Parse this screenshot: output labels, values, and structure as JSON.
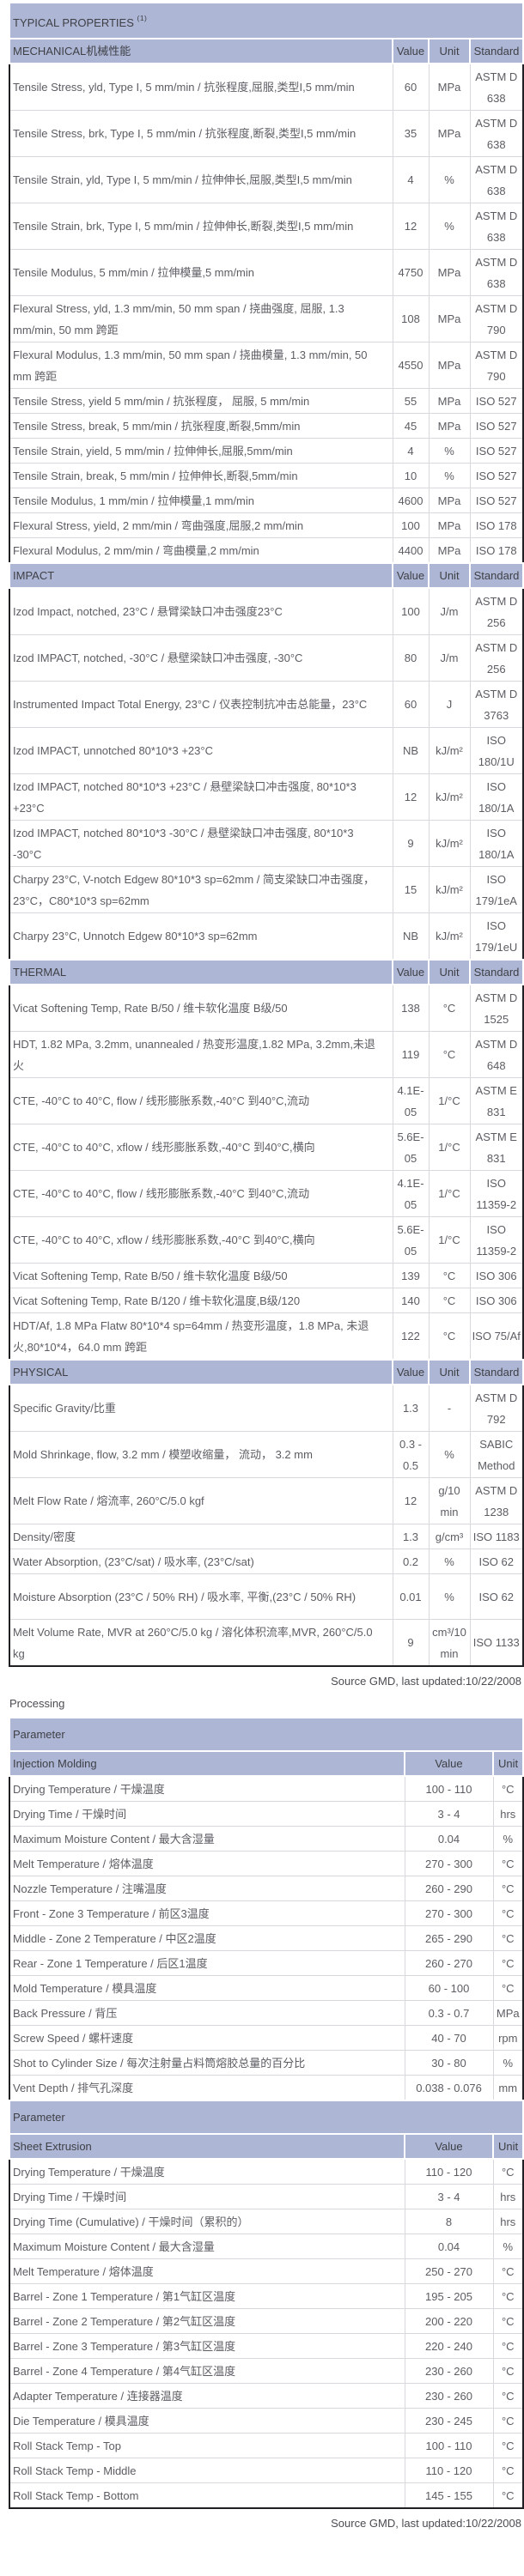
{
  "colors": {
    "header_bg": "#adb6d5",
    "header_text": "#3f4046",
    "body_text": "#5c5d63",
    "border_light": "#d8d9dd",
    "border_dark": "#202024"
  },
  "notes": {
    "source_top": "Source GMD, last updated:10/22/2008",
    "source_bottom": "Source GMD, last updated:10/22/2008"
  },
  "typical_properties": {
    "title": "TYPICAL PROPERTIES",
    "title_sup": "(1)",
    "columns": [
      "Value",
      "Unit",
      "Standard"
    ],
    "sections": [
      {
        "label": "MECHANICAL机械性能",
        "rows": [
          {
            "name": "Tensile Stress, yld, Type I, 5 mm/min / 抗张程度,屈服,类型I,5 mm/min",
            "value": "60",
            "unit": "MPa",
            "standard": "ASTM D 638",
            "tall": true
          },
          {
            "name": "Tensile Stress, brk, Type I, 5 mm/min / 抗张程度,断裂,类型I,5 mm/min",
            "value": "35",
            "unit": "MPa",
            "standard": "ASTM D 638",
            "tall": true
          },
          {
            "name": "Tensile Strain, yld, Type I, 5 mm/min / 拉伸伸长,屈服,类型I,5 mm/min",
            "value": "4",
            "unit": "%",
            "standard": "ASTM D 638",
            "tall": true
          },
          {
            "name": "Tensile Strain, brk, Type I, 5 mm/min / 拉伸伸长,断裂,类型I,5 mm/min",
            "value": "12",
            "unit": "%",
            "standard": "ASTM D 638",
            "tall": true
          },
          {
            "name": "Tensile Modulus, 5 mm/min / 拉伸模量,5 mm/min",
            "value": "4750",
            "unit": "MPa",
            "standard": "ASTM D 638",
            "tall": true
          },
          {
            "name": "Flexural Stress, yld, 1.3 mm/min, 50 mm span / 挠曲强度, 屈服, 1.3 mm/min, 50 mm 跨距",
            "value": "108",
            "unit": "MPa",
            "standard": "ASTM D 790",
            "tall": true
          },
          {
            "name": "Flexural Modulus, 1.3 mm/min, 50 mm span / 挠曲模量, 1.3 mm/min, 50 mm 跨距",
            "value": "4550",
            "unit": "MPa",
            "standard": "ASTM D 790",
            "tall": true
          },
          {
            "name": "Tensile Stress, yield 5 mm/min / 抗张程度， 屈服, 5 mm/min",
            "value": "55",
            "unit": "MPa",
            "standard": "ISO 527"
          },
          {
            "name": "Tensile Stress, break, 5 mm/min / 抗张程度,断裂,5mm/min",
            "value": "45",
            "unit": "MPa",
            "standard": "ISO 527"
          },
          {
            "name": "Tensile Strain, yield, 5 mm/min / 拉伸伸长,屈服,5mm/min",
            "value": "4",
            "unit": "%",
            "standard": "ISO 527"
          },
          {
            "name": "Tensile Strain, break, 5 mm/min / 拉伸伸长,断裂,5mm/min",
            "value": "10",
            "unit": "%",
            "standard": "ISO 527"
          },
          {
            "name": "Tensile Modulus, 1 mm/min / 拉伸模量,1 mm/min",
            "value": "4600",
            "unit": "MPa",
            "standard": "ISO 527"
          },
          {
            "name": "Flexural Stress, yield, 2 mm/min / 弯曲强度,屈服,2 mm/min",
            "value": "100",
            "unit": "MPa",
            "standard": "ISO 178"
          },
          {
            "name": "Flexural Modulus, 2 mm/min / 弯曲模量,2 mm/min",
            "value": "4400",
            "unit": "MPa",
            "standard": "ISO 178"
          }
        ]
      },
      {
        "label": "IMPACT",
        "rows": [
          {
            "name": "Izod Impact, notched, 23°C / 悬臂梁缺口冲击强度23°C",
            "value": "100",
            "unit": "J/m",
            "standard": "ASTM D 256",
            "tall": true
          },
          {
            "name": "Izod IMPACT, notched, -30°C / 悬壁梁缺口冲击强度, -30°C",
            "value": "80",
            "unit": "J/m",
            "standard": "ASTM D 256",
            "tall": true
          },
          {
            "name": "Instrumented Impact Total Energy, 23°C / 仪表控制抗冲击总能量，23°C",
            "value": "60",
            "unit": "J",
            "standard": "ASTM D 3763",
            "tall": true
          },
          {
            "name": "Izod IMPACT, unnotched 80*10*3 +23°C",
            "value": "NB",
            "unit": "kJ/m²",
            "standard": "ISO 180/1U",
            "tall": true
          },
          {
            "name": "Izod IMPACT, notched 80*10*3 +23°C / 悬壁梁缺口冲击强度, 80*10*3 +23°C",
            "value": "12",
            "unit": "kJ/m²",
            "standard": "ISO 180/1A",
            "tall": true
          },
          {
            "name": "Izod IMPACT, notched 80*10*3 -30°C / 悬壁梁缺口冲击强度, 80*10*3 -30°C",
            "value": "9",
            "unit": "kJ/m²",
            "standard": "ISO 180/1A",
            "tall": true
          },
          {
            "name": "Charpy 23°C, V-notch Edgew 80*10*3 sp=62mm / 简支梁缺口冲击强度，23°C，C80*10*3 sp=62mm",
            "value": "15",
            "unit": "kJ/m²",
            "standard": "ISO 179/1eA",
            "tall": true
          },
          {
            "name": "Charpy 23°C, Unnotch Edgew 80*10*3 sp=62mm",
            "value": "NB",
            "unit": "kJ/m²",
            "standard": "ISO 179/1eU",
            "tall": true
          }
        ]
      },
      {
        "label": "THERMAL",
        "rows": [
          {
            "name": "Vicat Softening Temp, Rate B/50 / 维卡软化温度 B级/50",
            "value": "138",
            "unit": "°C",
            "standard": "ASTM D 1525",
            "tall": true
          },
          {
            "name": "HDT, 1.82 MPa, 3.2mm, unannealed / 热变形温度,1.82 MPa, 3.2mm,未退火",
            "value": "119",
            "unit": "°C",
            "standard": "ASTM D 648",
            "tall": true
          },
          {
            "name": "CTE, -40°C to 40°C, flow / 线形膨胀系数,-40°C 到40°C,流动",
            "value": "4.1E-05",
            "unit": "1/°C",
            "standard": "ASTM E 831",
            "tall": true
          },
          {
            "name": "CTE, -40°C to 40°C, xflow / 线形膨胀系数,-40°C 到40°C,横向",
            "value": "5.6E-05",
            "unit": "1/°C",
            "standard": "ASTM E 831",
            "tall": true
          },
          {
            "name": "CTE, -40°C to 40°C, flow / 线形膨胀系数,-40°C 到40°C,流动",
            "value": "4.1E-05",
            "unit": "1/°C",
            "standard": "ISO 11359-2",
            "tall": true
          },
          {
            "name": "CTE, -40°C to 40°C, xflow / 线形膨胀系数,-40°C 到40°C,横向",
            "value": "5.6E-05",
            "unit": "1/°C",
            "standard": "ISO 11359-2",
            "tall": true
          },
          {
            "name": "Vicat Softening Temp, Rate B/50 / 维卡软化温度 B级/50",
            "value": "139",
            "unit": "°C",
            "standard": "ISO 306"
          },
          {
            "name": "Vicat Softening Temp, Rate B/120 / 维卡软化温度,B级/120",
            "value": "140",
            "unit": "°C",
            "standard": "ISO 306"
          },
          {
            "name": "HDT/Af, 1.8 MPa Flatw 80*10*4 sp=64mm / 热变形温度，1.8 MPa, 未退火,80*10*4，64.0 mm 跨距",
            "value": "122",
            "unit": "°C",
            "standard": "ISO 75/Af",
            "tall": true
          }
        ]
      },
      {
        "label": "PHYSICAL",
        "rows": [
          {
            "name": "Specific Gravity/比重",
            "value": "1.3",
            "unit": "-",
            "standard": "ASTM D 792",
            "tall": true
          },
          {
            "name": "Mold Shrinkage, flow, 3.2 mm / 模塑收缩量， 流动， 3.2 mm",
            "value": "0.3 - 0.5",
            "unit": "%",
            "standard": "SABIC Method",
            "tall": true
          },
          {
            "name": "Melt Flow Rate / 熔流率, 260°C/5.0 kgf",
            "value": "12",
            "unit": "g/10 min",
            "standard": "ASTM D 1238",
            "tall": true
          },
          {
            "name": "Density/密度",
            "value": "1.3",
            "unit": "g/cm³",
            "standard": "ISO 1183"
          },
          {
            "name": "Water Absorption, (23°C/sat) / 吸水率, (23°C/sat)",
            "value": "0.2",
            "unit": "%",
            "standard": "ISO 62"
          },
          {
            "name": "Moisture Absorption (23°C / 50% RH) / 吸水率, 平衡,(23°C / 50% RH)",
            "value": "0.01",
            "unit": "%",
            "standard": "ISO 62",
            "tall": true
          },
          {
            "name": "Melt Volume Rate, MVR at 260°C/5.0 kg / 溶化体积流率,MVR, 260°C/5.0 kg",
            "value": "9",
            "unit": "cm³/10 min",
            "standard": "ISO 1133",
            "tall": true
          }
        ]
      }
    ]
  },
  "processing": {
    "heading": "Processing",
    "tables": [
      {
        "param_header": "Parameter",
        "section": "Injection Molding",
        "columns": [
          "Value",
          "Unit"
        ],
        "rows": [
          {
            "name": "Drying Temperature / 干燥温度",
            "value": "100 - 110",
            "unit": "°C"
          },
          {
            "name": "Drying Time / 干燥时间",
            "value": "3 - 4",
            "unit": "hrs"
          },
          {
            "name": "Maximum Moisture Content / 最大含湿量",
            "value": "0.04",
            "unit": "%"
          },
          {
            "name": "Melt Temperature / 熔体温度",
            "value": "270 - 300",
            "unit": "°C"
          },
          {
            "name": "Nozzle Temperature / 注嘴温度",
            "value": "260 - 290",
            "unit": "°C"
          },
          {
            "name": "Front - Zone 3 Temperature / 前区3温度",
            "value": "270 - 300",
            "unit": "°C"
          },
          {
            "name": "Middle - Zone 2 Temperature / 中区2温度",
            "value": "265 - 290",
            "unit": "°C"
          },
          {
            "name": "Rear - Zone 1 Temperature / 后区1温度",
            "value": "260 - 270",
            "unit": "°C"
          },
          {
            "name": "Mold Temperature / 模具温度",
            "value": "60 - 100",
            "unit": "°C"
          },
          {
            "name": "Back Pressure / 背压",
            "value": "0.3 - 0.7",
            "unit": "MPa"
          },
          {
            "name": "Screw Speed / 螺杆速度",
            "value": "40 - 70",
            "unit": "rpm"
          },
          {
            "name": "Shot to Cylinder Size / 每次注射量占料筒熔胶总量的百分比",
            "value": "30 - 80",
            "unit": "%"
          },
          {
            "name": "Vent Depth / 排气孔深度",
            "value": "0.038 - 0.076",
            "unit": "mm"
          }
        ]
      },
      {
        "param_header": "Parameter",
        "section": "Sheet Extrusion",
        "columns": [
          "Value",
          "Unit"
        ],
        "rows": [
          {
            "name": "Drying Temperature / 干燥温度",
            "value": "110 - 120",
            "unit": "°C"
          },
          {
            "name": "Drying Time / 干燥时间",
            "value": "3 - 4",
            "unit": "hrs"
          },
          {
            "name": "Drying Time (Cumulative) / 干燥时间（累积的）",
            "value": "8",
            "unit": "hrs"
          },
          {
            "name": "Maximum Moisture Content / 最大含湿量",
            "value": "0.04",
            "unit": "%"
          },
          {
            "name": "Melt Temperature / 熔体温度",
            "value": "250 - 270",
            "unit": "°C"
          },
          {
            "name": "Barrel - Zone 1 Temperature / 第1气缸区温度",
            "value": "195 - 205",
            "unit": "°C"
          },
          {
            "name": "Barrel - Zone 2 Temperature / 第2气缸区温度",
            "value": "200 - 220",
            "unit": "°C"
          },
          {
            "name": "Barrel - Zone 3 Temperature / 第3气缸区温度",
            "value": "220 - 240",
            "unit": "°C"
          },
          {
            "name": "Barrel - Zone 4 Temperature / 第4气缸区温度",
            "value": "230 - 260",
            "unit": "°C"
          },
          {
            "name": "Adapter Temperature / 连接器温度",
            "value": "230 - 260",
            "unit": "°C"
          },
          {
            "name": "Die Temperature / 模具温度",
            "value": "230 - 245",
            "unit": "°C"
          },
          {
            "name": "Roll Stack Temp - Top",
            "value": "100 - 110",
            "unit": "°C"
          },
          {
            "name": "Roll Stack Temp - Middle",
            "value": "110 - 120",
            "unit": "°C"
          },
          {
            "name": "Roll Stack Temp - Bottom",
            "value": "145 - 155",
            "unit": "°C"
          }
        ]
      }
    ]
  }
}
